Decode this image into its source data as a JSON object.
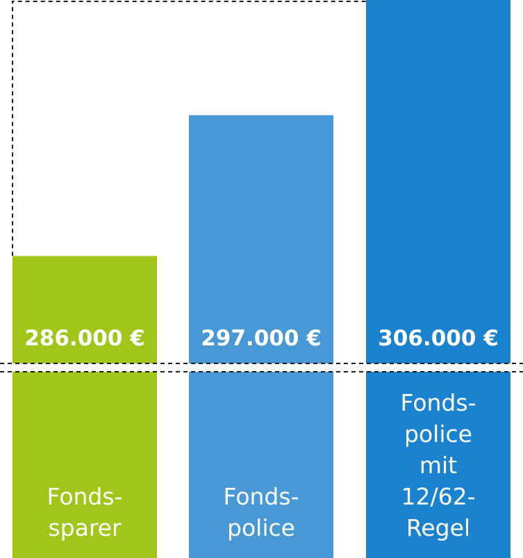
{
  "chart_data": {
    "type": "bar",
    "categories": [
      [
        "Fonds-",
        "sparer"
      ],
      [
        "Fonds-",
        "police"
      ],
      [
        "Fonds-",
        "police",
        "mit",
        "12/62-",
        "Regel"
      ]
    ],
    "values": [
      286000,
      297000,
      306000
    ],
    "value_labels": [
      "286.000 €",
      "297.000 €",
      "306.000 €"
    ],
    "colors": [
      "#a2c519",
      "#4898d6",
      "#1b82d0"
    ],
    "axis_break": true,
    "grid": false,
    "legend": "none"
  }
}
